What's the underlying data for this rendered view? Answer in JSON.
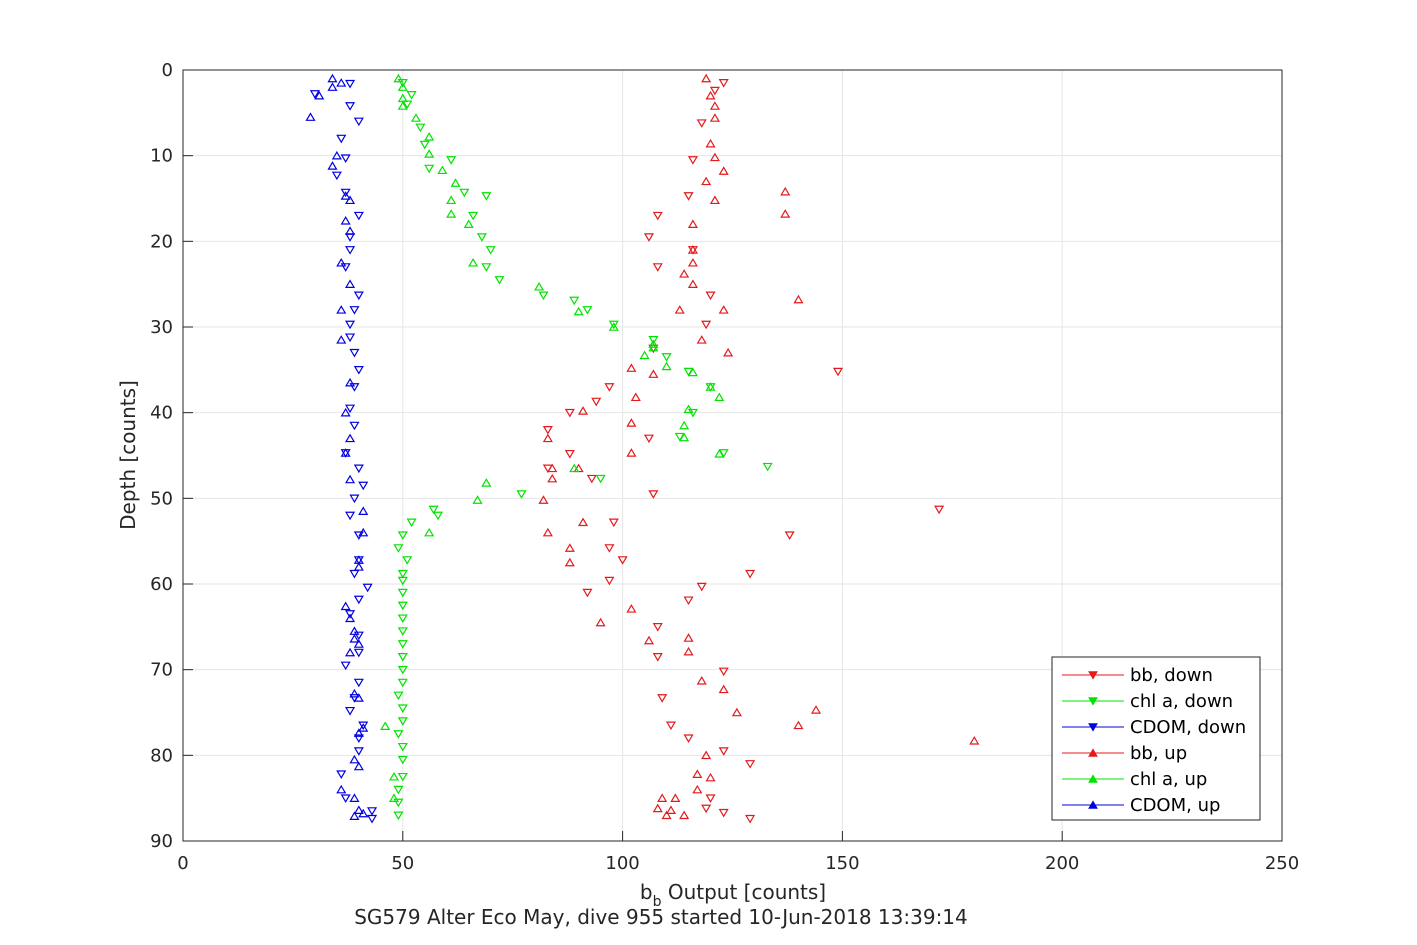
{
  "chart_data": {
    "type": "scatter",
    "title": "SG579 Alter Eco May, dive 955 started 10-Jun-2018 13:39:14",
    "xlabel": {
      "main": "b",
      "sub": "b",
      "rest": " Output [counts]"
    },
    "ylabel": "Depth [counts]",
    "xlim": [
      0,
      250
    ],
    "ylim": [
      0,
      90
    ],
    "y_reversed": true,
    "grid": true,
    "legend_position": "bottom-right",
    "x_ticks": [
      "0",
      "50",
      "100",
      "150",
      "200",
      "250"
    ],
    "y_ticks": [
      "0",
      "10",
      "20",
      "30",
      "40",
      "50",
      "60",
      "70",
      "80",
      "90"
    ],
    "series": [
      {
        "name": "bb, down",
        "color": "#e41a1c",
        "marker": "triangle-down",
        "points": [
          [
            123,
            1.5
          ],
          [
            121,
            2.4
          ],
          [
            118,
            6.2
          ],
          [
            116,
            10.5
          ],
          [
            115,
            14.7
          ],
          [
            108,
            17
          ],
          [
            106,
            19.5
          ],
          [
            116,
            21
          ],
          [
            108,
            23
          ],
          [
            120,
            26.3
          ],
          [
            119,
            29.7
          ],
          [
            107,
            32.5
          ],
          [
            149,
            35.2
          ],
          [
            97,
            37
          ],
          [
            94,
            38.7
          ],
          [
            88,
            40
          ],
          [
            83,
            42
          ],
          [
            106,
            43
          ],
          [
            88,
            44.8
          ],
          [
            83,
            46.5
          ],
          [
            93,
            47.7
          ],
          [
            107,
            49.5
          ],
          [
            172,
            51.3
          ],
          [
            98,
            52.8
          ],
          [
            138,
            54.3
          ],
          [
            97,
            55.8
          ],
          [
            100,
            57.2
          ],
          [
            129,
            58.8
          ],
          [
            97,
            59.6
          ],
          [
            92,
            61
          ],
          [
            118,
            60.3
          ],
          [
            115,
            61.9
          ],
          [
            108,
            65
          ],
          [
            108,
            68.5
          ],
          [
            123,
            70.2
          ],
          [
            109,
            73.3
          ],
          [
            111,
            76.5
          ],
          [
            115,
            78
          ],
          [
            123,
            79.5
          ],
          [
            129,
            81
          ],
          [
            120,
            85
          ],
          [
            119,
            86.2
          ],
          [
            123,
            86.7
          ],
          [
            129,
            87.4
          ]
        ]
      },
      {
        "name": "chl a, down",
        "color": "#00e400",
        "marker": "triangle-down",
        "points": [
          [
            50,
            1.5
          ],
          [
            52,
            2.9
          ],
          [
            51,
            4
          ],
          [
            54,
            6.7
          ],
          [
            55,
            8.7
          ],
          [
            56,
            11.5
          ],
          [
            61,
            10.5
          ],
          [
            64,
            14.3
          ],
          [
            69,
            14.7
          ],
          [
            66,
            17
          ],
          [
            68,
            19.5
          ],
          [
            70,
            21
          ],
          [
            69,
            23
          ],
          [
            72,
            24.5
          ],
          [
            82,
            26.3
          ],
          [
            89,
            26.9
          ],
          [
            92,
            28
          ],
          [
            98,
            29.7
          ],
          [
            107,
            31.5
          ],
          [
            110,
            33.5
          ],
          [
            115,
            35.2
          ],
          [
            120,
            37
          ],
          [
            116,
            40
          ],
          [
            113,
            42.8
          ],
          [
            123,
            44.7
          ],
          [
            133,
            46.3
          ],
          [
            95,
            47.7
          ],
          [
            77,
            49.5
          ],
          [
            57,
            51.3
          ],
          [
            58,
            52
          ],
          [
            52,
            52.8
          ],
          [
            50,
            54.3
          ],
          [
            49,
            55.8
          ],
          [
            51,
            57.2
          ],
          [
            50,
            58.8
          ],
          [
            50,
            59.6
          ],
          [
            50,
            61
          ],
          [
            50,
            62.5
          ],
          [
            50,
            64
          ],
          [
            50,
            65.5
          ],
          [
            50,
            67
          ],
          [
            50,
            68.5
          ],
          [
            50,
            70
          ],
          [
            50,
            71.5
          ],
          [
            49,
            73
          ],
          [
            50,
            74.5
          ],
          [
            50,
            76
          ],
          [
            49,
            77.5
          ],
          [
            50,
            79
          ],
          [
            50,
            80.5
          ],
          [
            50,
            82.5
          ],
          [
            49,
            84
          ],
          [
            49,
            85.5
          ],
          [
            49,
            87
          ]
        ]
      },
      {
        "name": "CDOM, down",
        "color": "#0000e4",
        "marker": "triangle-down",
        "points": [
          [
            38,
            1.6
          ],
          [
            30,
            2.8
          ],
          [
            38,
            4.2
          ],
          [
            40,
            6
          ],
          [
            36,
            8
          ],
          [
            37,
            10.3
          ],
          [
            35,
            12.3
          ],
          [
            37,
            14.3
          ],
          [
            40,
            17
          ],
          [
            38,
            19.5
          ],
          [
            38,
            21
          ],
          [
            37,
            23
          ],
          [
            40,
            26.3
          ],
          [
            39,
            28
          ],
          [
            38,
            29.7
          ],
          [
            38,
            31.2
          ],
          [
            39,
            33
          ],
          [
            40,
            35
          ],
          [
            39,
            37
          ],
          [
            38,
            39.5
          ],
          [
            39,
            41.5
          ],
          [
            37,
            44.7
          ],
          [
            40,
            46.5
          ],
          [
            41,
            48.5
          ],
          [
            39,
            50
          ],
          [
            38,
            52
          ],
          [
            40,
            54.3
          ],
          [
            40,
            57.2
          ],
          [
            39,
            58.8
          ],
          [
            42,
            60.4
          ],
          [
            40,
            61.8
          ],
          [
            38,
            63.5
          ],
          [
            40,
            66
          ],
          [
            40,
            68
          ],
          [
            37,
            69.5
          ],
          [
            40,
            71.5
          ],
          [
            39,
            73.3
          ],
          [
            38,
            74.8
          ],
          [
            41,
            76.5
          ],
          [
            40,
            78
          ],
          [
            40,
            79.5
          ],
          [
            36,
            82.2
          ],
          [
            37,
            85
          ],
          [
            43,
            86.5
          ],
          [
            43,
            87.4
          ]
        ]
      },
      {
        "name": "bb, up",
        "color": "#e41a1c",
        "marker": "triangle-up",
        "points": [
          [
            119,
            1
          ],
          [
            120,
            3
          ],
          [
            121,
            4.2
          ],
          [
            121,
            5.6
          ],
          [
            120,
            8.6
          ],
          [
            121,
            10.2
          ],
          [
            123,
            11.8
          ],
          [
            119,
            13
          ],
          [
            121,
            15.2
          ],
          [
            137,
            14.2
          ],
          [
            137,
            16.8
          ],
          [
            116,
            18
          ],
          [
            116,
            21
          ],
          [
            116,
            22.5
          ],
          [
            114,
            23.8
          ],
          [
            116,
            25
          ],
          [
            123,
            28
          ],
          [
            140,
            26.8
          ],
          [
            113,
            28
          ],
          [
            118,
            31.5
          ],
          [
            124,
            33
          ],
          [
            102,
            34.8
          ],
          [
            107,
            35.5
          ],
          [
            103,
            38.2
          ],
          [
            91,
            39.8
          ],
          [
            102,
            41.2
          ],
          [
            83,
            43
          ],
          [
            102,
            44.7
          ],
          [
            84,
            46.5
          ],
          [
            90,
            46.5
          ],
          [
            84,
            47.7
          ],
          [
            82,
            50.2
          ],
          [
            91,
            52.8
          ],
          [
            83,
            54
          ],
          [
            88,
            55.8
          ],
          [
            88,
            57.5
          ],
          [
            102,
            62.9
          ],
          [
            95,
            64.5
          ],
          [
            106,
            66.6
          ],
          [
            115,
            66.3
          ],
          [
            115,
            67.9
          ],
          [
            118,
            71.3
          ],
          [
            123,
            72.3
          ],
          [
            126,
            75
          ],
          [
            144,
            74.7
          ],
          [
            140,
            76.5
          ],
          [
            180,
            78.3
          ],
          [
            119,
            80
          ],
          [
            117,
            82.2
          ],
          [
            120,
            82.6
          ],
          [
            109,
            85
          ],
          [
            117,
            84
          ],
          [
            108,
            86.2
          ],
          [
            112,
            85
          ],
          [
            111,
            86.4
          ],
          [
            110,
            87
          ],
          [
            114,
            87
          ]
        ]
      },
      {
        "name": "chl a, up",
        "color": "#00e400",
        "marker": "triangle-up",
        "points": [
          [
            49,
            1
          ],
          [
            50,
            2
          ],
          [
            50,
            3.3
          ],
          [
            50,
            4.2
          ],
          [
            53,
            5.6
          ],
          [
            56,
            7.8
          ],
          [
            56,
            9.8
          ],
          [
            59,
            11.7
          ],
          [
            62,
            13.2
          ],
          [
            61,
            16.8
          ],
          [
            61,
            15.2
          ],
          [
            65,
            18
          ],
          [
            66,
            22.5
          ],
          [
            81,
            25.3
          ],
          [
            90,
            28.2
          ],
          [
            98,
            30
          ],
          [
            107,
            32
          ],
          [
            107,
            32.4
          ],
          [
            105,
            33.3
          ],
          [
            110,
            34.6
          ],
          [
            116,
            35.3
          ],
          [
            120,
            37
          ],
          [
            122,
            38.2
          ],
          [
            115,
            39.6
          ],
          [
            114,
            41.5
          ],
          [
            114,
            42.9
          ],
          [
            122,
            44.8
          ],
          [
            89,
            46.5
          ],
          [
            69,
            48.2
          ],
          [
            67,
            50.2
          ],
          [
            56,
            54
          ],
          [
            46,
            76.6
          ],
          [
            48,
            82.5
          ],
          [
            48,
            85
          ]
        ]
      },
      {
        "name": "CDOM, up",
        "color": "#0000e4",
        "marker": "triangle-up",
        "points": [
          [
            34,
            1
          ],
          [
            34,
            2
          ],
          [
            31,
            3
          ],
          [
            36,
            1.5
          ],
          [
            29,
            5.5
          ],
          [
            35,
            10
          ],
          [
            34,
            11.2
          ],
          [
            37,
            14.7
          ],
          [
            38,
            15.2
          ],
          [
            37,
            17.6
          ],
          [
            38,
            18.8
          ],
          [
            36,
            22.5
          ],
          [
            38,
            25
          ],
          [
            36,
            28
          ],
          [
            36,
            31.5
          ],
          [
            38,
            36.5
          ],
          [
            37,
            40
          ],
          [
            38,
            43
          ],
          [
            37,
            44.7
          ],
          [
            38,
            47.8
          ],
          [
            41,
            51.5
          ],
          [
            41,
            54
          ],
          [
            40,
            57.2
          ],
          [
            40,
            58
          ],
          [
            37,
            62.6
          ],
          [
            38,
            64
          ],
          [
            39,
            65.5
          ],
          [
            39,
            66.4
          ],
          [
            40,
            67
          ],
          [
            38,
            68
          ],
          [
            39,
            72.8
          ],
          [
            40,
            73.3
          ],
          [
            41,
            76.8
          ],
          [
            40,
            77.4
          ],
          [
            39,
            80.5
          ],
          [
            36,
            84
          ],
          [
            39,
            85
          ],
          [
            40,
            86.4
          ],
          [
            41,
            86.8
          ],
          [
            39,
            87.1
          ],
          [
            40,
            81.3
          ]
        ]
      }
    ]
  }
}
